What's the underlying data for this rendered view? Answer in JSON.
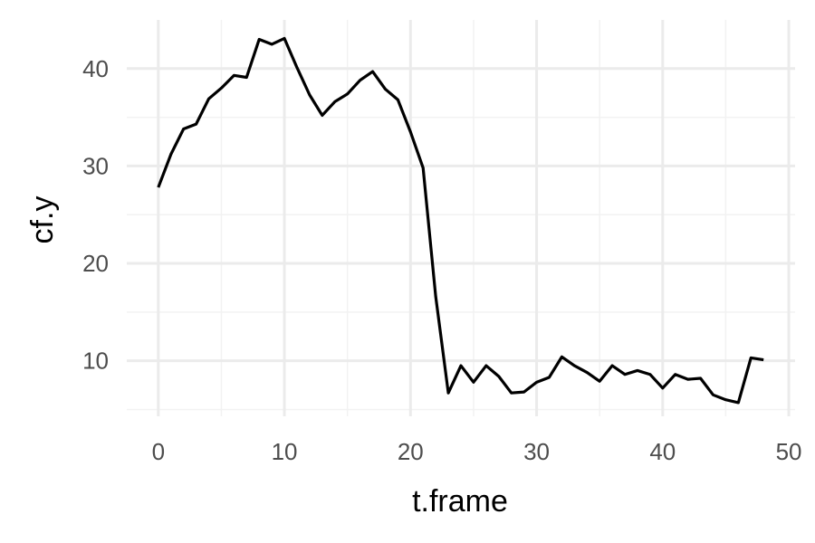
{
  "chart_data": {
    "type": "line",
    "title": "",
    "xlabel": "t.frame",
    "ylabel": "cf.y",
    "xlim": [
      -2.5,
      50.5
    ],
    "ylim": [
      4.3,
      45
    ],
    "x_ticks": [
      0,
      10,
      20,
      30,
      40,
      50
    ],
    "y_ticks": [
      10,
      20,
      30,
      40
    ],
    "x_tick_labels": [
      "0",
      "10",
      "20",
      "30",
      "40",
      "50"
    ],
    "y_tick_labels": [
      "10",
      "20",
      "30",
      "40"
    ],
    "x_minor_ticks": [
      5,
      15,
      25,
      35,
      45
    ],
    "y_minor_ticks": [
      5,
      15,
      25,
      35
    ],
    "grid": true,
    "legend": "none",
    "line_color": "#000000",
    "series": [
      {
        "x": [
          0,
          1,
          2,
          3,
          4,
          5,
          6,
          7,
          8,
          9,
          10,
          11,
          12,
          13,
          14,
          15,
          16,
          17,
          18,
          19,
          20,
          21,
          22,
          23,
          24,
          25,
          26,
          27,
          28,
          29,
          30,
          31,
          32,
          33,
          34,
          35,
          36,
          37,
          38,
          39,
          40,
          41,
          42,
          43,
          44,
          45,
          46,
          47,
          48
        ],
        "values": [
          27.8,
          31.2,
          33.8,
          34.3,
          36.9,
          38.0,
          39.3,
          39.1,
          43.0,
          42.5,
          43.1,
          40.1,
          37.3,
          35.2,
          36.6,
          37.4,
          38.8,
          39.7,
          37.9,
          36.8,
          33.5,
          29.8,
          16.6,
          6.7,
          9.5,
          7.8,
          9.5,
          8.4,
          6.7,
          6.8,
          7.8,
          8.3,
          10.4,
          9.5,
          8.8,
          7.9,
          9.5,
          8.6,
          9.0,
          8.6,
          7.2,
          8.6,
          8.1,
          8.2,
          6.5,
          6.0,
          5.7,
          10.3,
          10.1
        ]
      }
    ]
  }
}
